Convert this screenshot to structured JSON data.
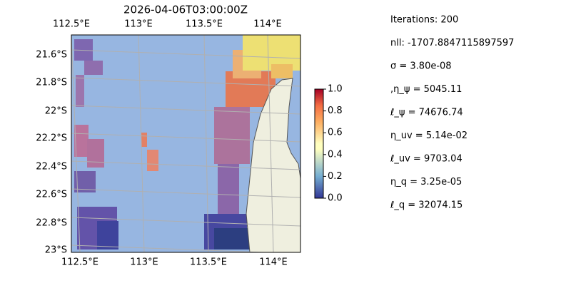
{
  "map": {
    "title": "2026-04-06T03:00:00Z",
    "x_labels_top": [
      "112.5°E",
      "113°E",
      "113.5°E",
      "114°E"
    ],
    "x_labels_bottom": [
      "112.5°E",
      "113°E",
      "113.5°E",
      "114°E"
    ],
    "y_labels": [
      "21.6°S",
      "21.8°S",
      "22°S",
      "22.2°S",
      "22.4°S",
      "22.6°S",
      "22.8°S",
      "23°S"
    ]
  },
  "colorbar": {
    "ticks": [
      "0.0",
      "0.2",
      "0.4",
      "0.6",
      "0.8",
      "1.0"
    ]
  },
  "stats": [
    "Iterations: 200",
    "nll: -1707.8847115897597",
    "σ = 3.80e-08",
    ",η_ψ = 5045.11",
    "ℓ_ψ = 74676.74",
    "η_uv = 5.14e-02",
    "ℓ_uv = 9703.04",
    "η_q = 3.25e-05",
    "ℓ_q = 32074.15"
  ]
}
